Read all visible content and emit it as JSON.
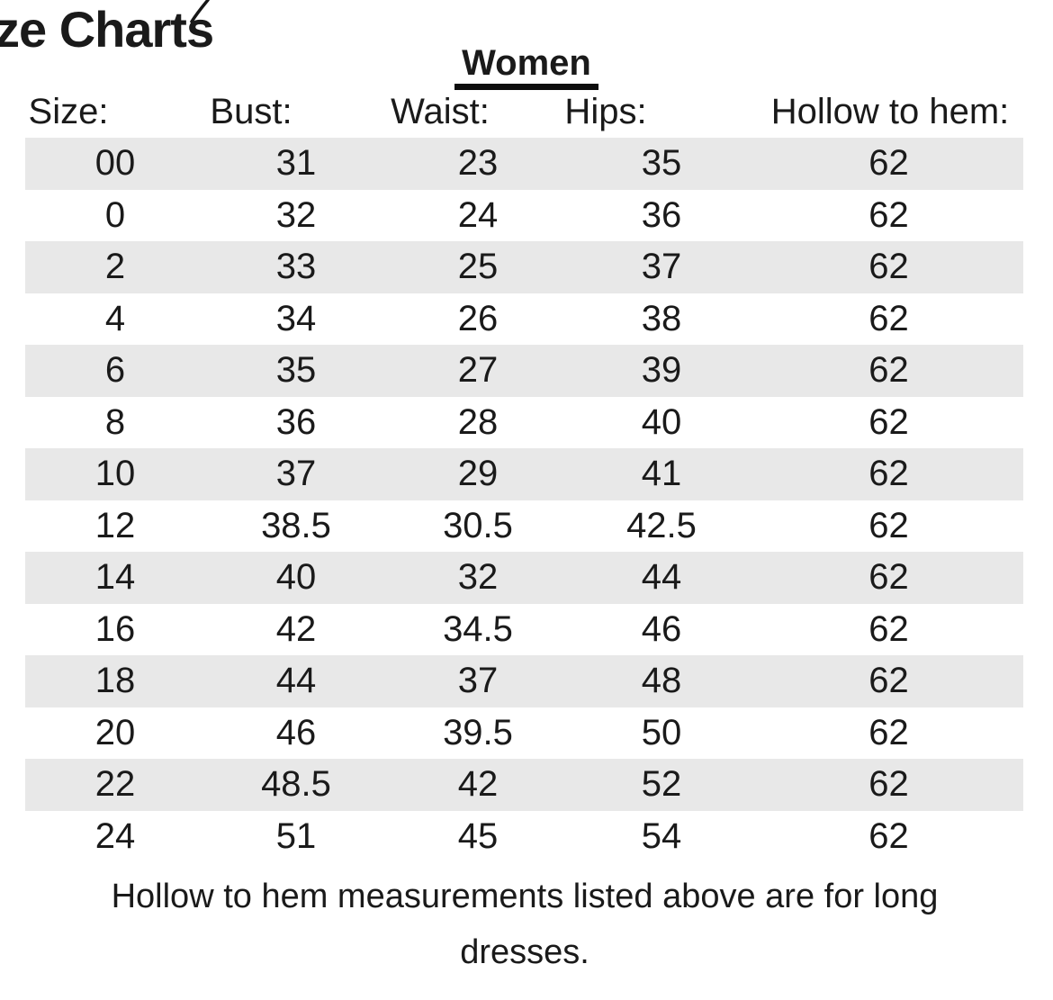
{
  "document": {
    "title": "ze Charts",
    "section_heading": "Women",
    "footer": {
      "line1": "Hollow to hem measurements listed above are for long",
      "line2": "dresses."
    }
  },
  "table": {
    "headers": [
      "Size:",
      "Bust:",
      "Waist:",
      "Hips:",
      "Hollow to hem:"
    ],
    "columns": [
      "size",
      "bust",
      "waist",
      "hips",
      "hollow_to_hem"
    ],
    "rows": [
      {
        "size": "00",
        "bust": "31",
        "waist": "23",
        "hips": "35",
        "hollow_to_hem": "62"
      },
      {
        "size": "0",
        "bust": "32",
        "waist": "24",
        "hips": "36",
        "hollow_to_hem": "62"
      },
      {
        "size": "2",
        "bust": "33",
        "waist": "25",
        "hips": "37",
        "hollow_to_hem": "62"
      },
      {
        "size": "4",
        "bust": "34",
        "waist": "26",
        "hips": "38",
        "hollow_to_hem": "62"
      },
      {
        "size": "6",
        "bust": "35",
        "waist": "27",
        "hips": "39",
        "hollow_to_hem": "62"
      },
      {
        "size": "8",
        "bust": "36",
        "waist": "28",
        "hips": "40",
        "hollow_to_hem": "62"
      },
      {
        "size": "10",
        "bust": "37",
        "waist": "29",
        "hips": "41",
        "hollow_to_hem": "62"
      },
      {
        "size": "12",
        "bust": "38.5",
        "waist": "30.5",
        "hips": "42.5",
        "hollow_to_hem": "62"
      },
      {
        "size": "14",
        "bust": "40",
        "waist": "32",
        "hips": "44",
        "hollow_to_hem": "62"
      },
      {
        "size": "16",
        "bust": "42",
        "waist": "34.5",
        "hips": "46",
        "hollow_to_hem": "62"
      },
      {
        "size": "18",
        "bust": "44",
        "waist": "37",
        "hips": "48",
        "hollow_to_hem": "62"
      },
      {
        "size": "20",
        "bust": "46",
        "waist": "39.5",
        "hips": "50",
        "hollow_to_hem": "62"
      },
      {
        "size": "22",
        "bust": "48.5",
        "waist": "42",
        "hips": "52",
        "hollow_to_hem": "62"
      },
      {
        "size": "24",
        "bust": "51",
        "waist": "45",
        "hips": "54",
        "hollow_to_hem": "62"
      }
    ]
  },
  "colors": {
    "stripe": "#e8e8e8",
    "text": "#1a1a1a",
    "background": "#ffffff"
  }
}
